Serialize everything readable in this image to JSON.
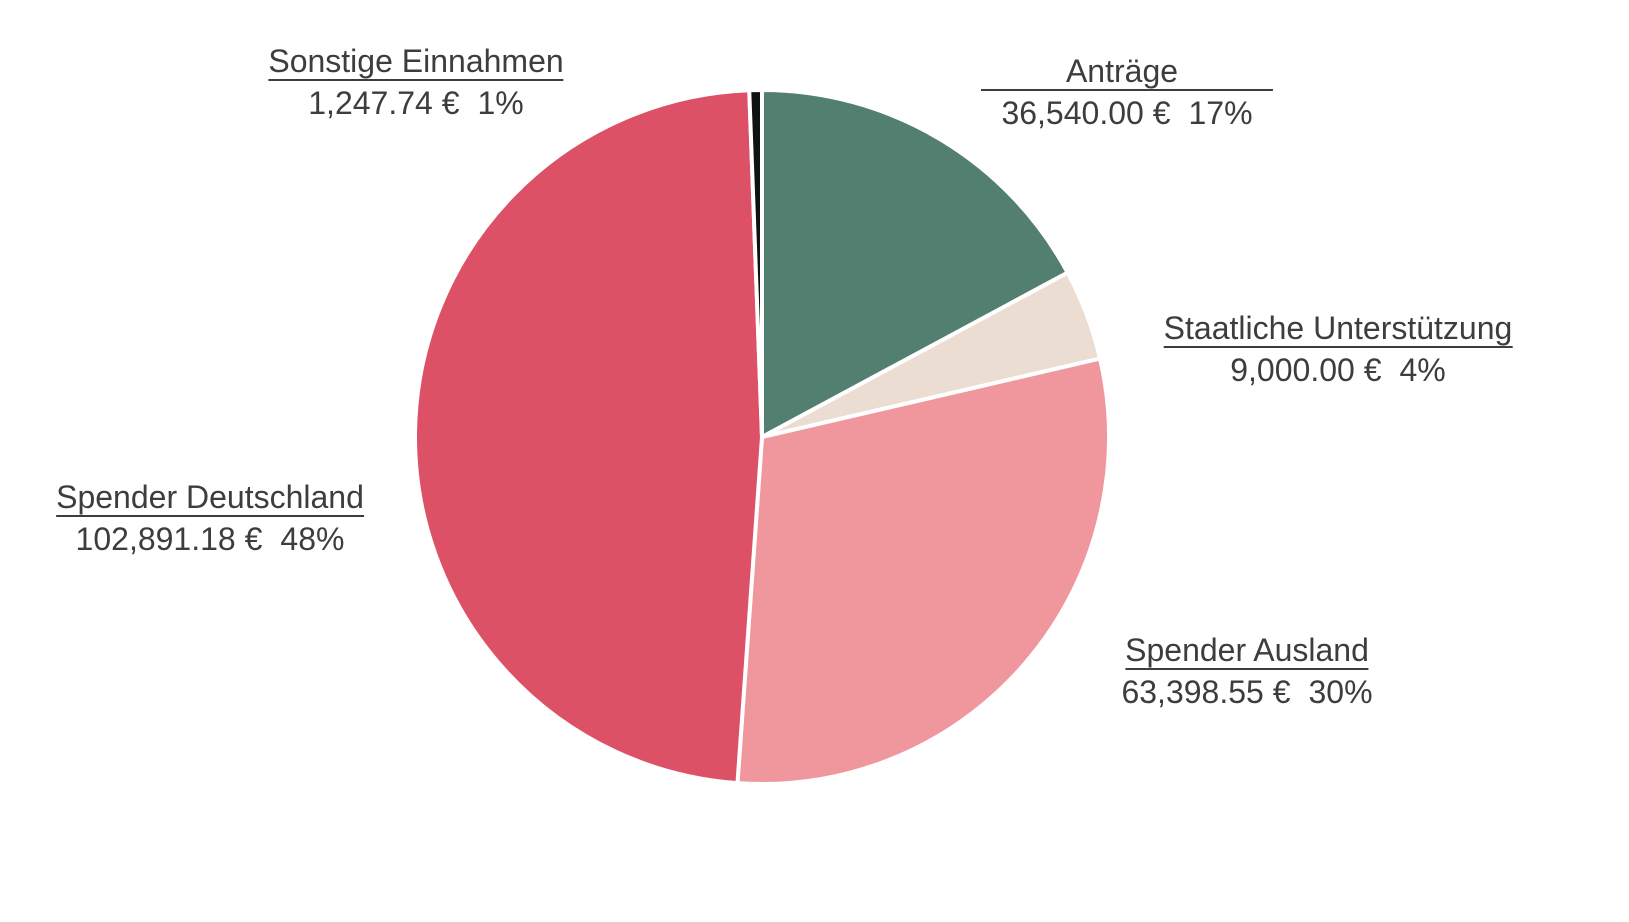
{
  "chart_data": {
    "type": "pie",
    "title": "",
    "start_angle": "top",
    "direction": "clockwise",
    "slices": [
      {
        "label": "Anträge",
        "value": 36540.0,
        "value_text": "36,540.00 €",
        "percent_text": "17%",
        "color": "#527f6f"
      },
      {
        "label": "Staatliche Unterstützung",
        "value": 9000.0,
        "value_text": "9,000.00 €",
        "percent_text": "4%",
        "color": "#ecddd3"
      },
      {
        "label": "Spender Ausland",
        "value": 63398.55,
        "value_text": "63,398.55 €",
        "percent_text": "30%",
        "color": "#f0979e"
      },
      {
        "label": "Spender Deutschland",
        "value": 102891.18,
        "value_text": "102,891.18 €",
        "percent_text": "48%",
        "color": "#dd5166"
      },
      {
        "label": "Sonstige Einnahmen",
        "value": 1247.74,
        "value_text": "1,247.74 €",
        "percent_text": "1%",
        "color": "#111111"
      }
    ]
  }
}
